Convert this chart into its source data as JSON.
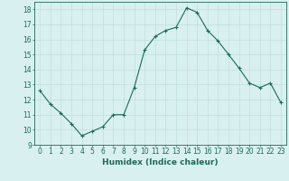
{
  "x": [
    0,
    1,
    2,
    3,
    4,
    5,
    6,
    7,
    8,
    9,
    10,
    11,
    12,
    13,
    14,
    15,
    16,
    17,
    18,
    19,
    20,
    21,
    22,
    23
  ],
  "y": [
    12.6,
    11.7,
    11.1,
    10.4,
    9.6,
    9.9,
    10.2,
    11.0,
    11.0,
    12.8,
    15.3,
    16.2,
    16.6,
    16.8,
    18.1,
    17.8,
    16.6,
    15.9,
    15.0,
    14.1,
    13.1,
    12.8,
    13.1,
    11.8
  ],
  "line_color": "#1a6b5a",
  "marker": "+",
  "marker_size": 3,
  "bg_color": "#d9f0f0",
  "grid_color": "#c0dede",
  "xlabel": "Humidex (Indice chaleur)",
  "ylim": [
    9,
    18.5
  ],
  "yticks": [
    9,
    10,
    11,
    12,
    13,
    14,
    15,
    16,
    17,
    18
  ],
  "xticks": [
    0,
    1,
    2,
    3,
    4,
    5,
    6,
    7,
    8,
    9,
    10,
    11,
    12,
    13,
    14,
    15,
    16,
    17,
    18,
    19,
    20,
    21,
    22,
    23
  ],
  "label_fontsize": 6.5,
  "tick_fontsize": 5.5
}
